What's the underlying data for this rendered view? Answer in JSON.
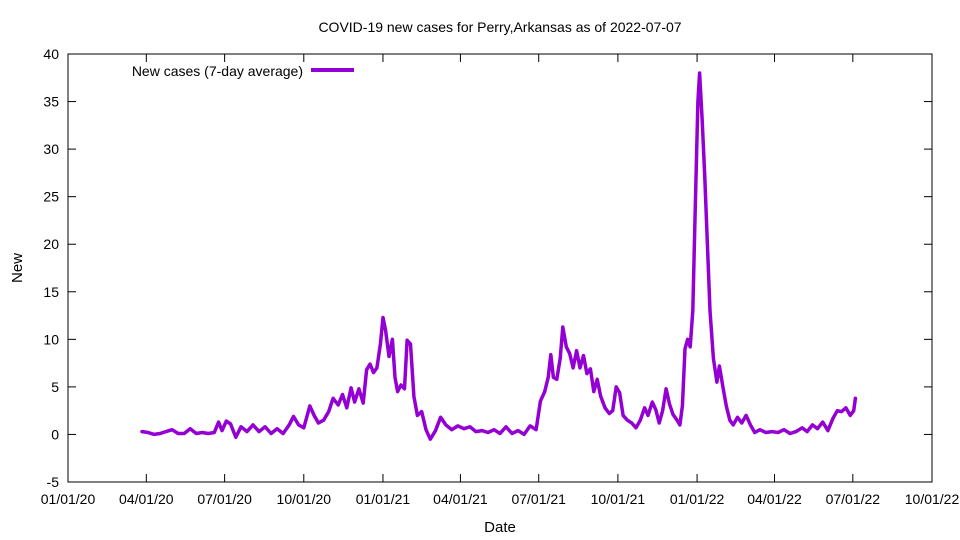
{
  "chart_data": {
    "type": "line",
    "title": "COVID-19 new cases for Perry,Arkansas as of 2022-07-07",
    "xlabel": "Date",
    "ylabel": "New",
    "ylim": [
      -5,
      40
    ],
    "yticks": [
      -5,
      0,
      5,
      10,
      15,
      20,
      25,
      30,
      35,
      40
    ],
    "xlim": [
      "2020-01-01",
      "2022-10-01"
    ],
    "xticks": [
      {
        "date": "2020-01-01",
        "label": "01/01/20"
      },
      {
        "date": "2020-04-01",
        "label": "04/01/20"
      },
      {
        "date": "2020-07-01",
        "label": "07/01/20"
      },
      {
        "date": "2020-10-01",
        "label": "10/01/20"
      },
      {
        "date": "2021-01-01",
        "label": "01/01/21"
      },
      {
        "date": "2021-04-01",
        "label": "04/01/21"
      },
      {
        "date": "2021-07-01",
        "label": "07/01/21"
      },
      {
        "date": "2021-10-01",
        "label": "10/01/21"
      },
      {
        "date": "2022-01-01",
        "label": "01/01/22"
      },
      {
        "date": "2022-04-01",
        "label": "04/01/22"
      },
      {
        "date": "2022-07-01",
        "label": "07/01/22"
      },
      {
        "date": "2022-10-01",
        "label": "10/01/22"
      }
    ],
    "grid": false,
    "legend_position": "top-left",
    "series": [
      {
        "name": "New cases (7-day average)",
        "color": "#9400d3",
        "points": [
          [
            "2020-03-27",
            0.3
          ],
          [
            "2020-04-03",
            0.2
          ],
          [
            "2020-04-10",
            0.0
          ],
          [
            "2020-04-17",
            0.1
          ],
          [
            "2020-04-24",
            0.3
          ],
          [
            "2020-05-01",
            0.5
          ],
          [
            "2020-05-08",
            0.1
          ],
          [
            "2020-05-15",
            0.1
          ],
          [
            "2020-05-22",
            0.6
          ],
          [
            "2020-05-29",
            0.1
          ],
          [
            "2020-06-05",
            0.2
          ],
          [
            "2020-06-12",
            0.1
          ],
          [
            "2020-06-19",
            0.2
          ],
          [
            "2020-06-24",
            1.3
          ],
          [
            "2020-06-28",
            0.4
          ],
          [
            "2020-07-03",
            1.4
          ],
          [
            "2020-07-08",
            1.1
          ],
          [
            "2020-07-14",
            -0.3
          ],
          [
            "2020-07-20",
            0.8
          ],
          [
            "2020-07-27",
            0.3
          ],
          [
            "2020-08-03",
            1.0
          ],
          [
            "2020-08-10",
            0.3
          ],
          [
            "2020-08-17",
            0.8
          ],
          [
            "2020-08-24",
            0.1
          ],
          [
            "2020-08-31",
            0.6
          ],
          [
            "2020-09-07",
            0.1
          ],
          [
            "2020-09-14",
            1.0
          ],
          [
            "2020-09-19",
            1.9
          ],
          [
            "2020-09-25",
            1.0
          ],
          [
            "2020-10-01",
            0.7
          ],
          [
            "2020-10-08",
            3.0
          ],
          [
            "2020-10-13",
            2.0
          ],
          [
            "2020-10-18",
            1.2
          ],
          [
            "2020-10-24",
            1.5
          ],
          [
            "2020-10-30",
            2.4
          ],
          [
            "2020-11-04",
            3.8
          ],
          [
            "2020-11-10",
            3.1
          ],
          [
            "2020-11-15",
            4.2
          ],
          [
            "2020-11-20",
            2.8
          ],
          [
            "2020-11-25",
            4.9
          ],
          [
            "2020-11-29",
            3.4
          ],
          [
            "2020-12-04",
            4.8
          ],
          [
            "2020-12-09",
            3.3
          ],
          [
            "2020-12-13",
            6.8
          ],
          [
            "2020-12-17",
            7.4
          ],
          [
            "2020-12-21",
            6.5
          ],
          [
            "2020-12-25",
            7.0
          ],
          [
            "2020-12-29",
            9.5
          ],
          [
            "2021-01-01",
            12.3
          ],
          [
            "2021-01-04",
            11.0
          ],
          [
            "2021-01-08",
            8.2
          ],
          [
            "2021-01-12",
            10.0
          ],
          [
            "2021-01-15",
            6.0
          ],
          [
            "2021-01-18",
            4.5
          ],
          [
            "2021-01-22",
            5.2
          ],
          [
            "2021-01-26",
            4.8
          ],
          [
            "2021-01-29",
            9.9
          ],
          [
            "2021-02-02",
            9.5
          ],
          [
            "2021-02-06",
            4.0
          ],
          [
            "2021-02-10",
            2.0
          ],
          [
            "2021-02-15",
            2.4
          ],
          [
            "2021-02-20",
            0.5
          ],
          [
            "2021-02-25",
            -0.5
          ],
          [
            "2021-03-03",
            0.4
          ],
          [
            "2021-03-09",
            1.8
          ],
          [
            "2021-03-15",
            1.0
          ],
          [
            "2021-03-22",
            0.5
          ],
          [
            "2021-03-29",
            0.9
          ],
          [
            "2021-04-05",
            0.6
          ],
          [
            "2021-04-12",
            0.8
          ],
          [
            "2021-04-19",
            0.3
          ],
          [
            "2021-04-26",
            0.4
          ],
          [
            "2021-05-03",
            0.2
          ],
          [
            "2021-05-10",
            0.5
          ],
          [
            "2021-05-17",
            0.1
          ],
          [
            "2021-05-24",
            0.8
          ],
          [
            "2021-05-31",
            0.1
          ],
          [
            "2021-06-07",
            0.4
          ],
          [
            "2021-06-14",
            0.0
          ],
          [
            "2021-06-21",
            0.9
          ],
          [
            "2021-06-28",
            0.5
          ],
          [
            "2021-07-03",
            3.5
          ],
          [
            "2021-07-08",
            4.5
          ],
          [
            "2021-07-12",
            6.0
          ],
          [
            "2021-07-15",
            8.4
          ],
          [
            "2021-07-18",
            6.0
          ],
          [
            "2021-07-22",
            5.8
          ],
          [
            "2021-07-26",
            8.0
          ],
          [
            "2021-07-29",
            11.3
          ],
          [
            "2021-08-02",
            9.2
          ],
          [
            "2021-08-06",
            8.5
          ],
          [
            "2021-08-10",
            7.0
          ],
          [
            "2021-08-14",
            8.8
          ],
          [
            "2021-08-18",
            7.0
          ],
          [
            "2021-08-22",
            8.3
          ],
          [
            "2021-08-26",
            6.4
          ],
          [
            "2021-08-30",
            6.9
          ],
          [
            "2021-09-03",
            4.5
          ],
          [
            "2021-09-07",
            5.8
          ],
          [
            "2021-09-11",
            4.0
          ],
          [
            "2021-09-16",
            2.8
          ],
          [
            "2021-09-21",
            2.2
          ],
          [
            "2021-09-25",
            2.5
          ],
          [
            "2021-09-29",
            5.0
          ],
          [
            "2021-10-03",
            4.4
          ],
          [
            "2021-10-07",
            2.0
          ],
          [
            "2021-10-12",
            1.5
          ],
          [
            "2021-10-17",
            1.2
          ],
          [
            "2021-10-22",
            0.7
          ],
          [
            "2021-10-27",
            1.5
          ],
          [
            "2021-11-01",
            2.8
          ],
          [
            "2021-11-05",
            2.0
          ],
          [
            "2021-11-10",
            3.4
          ],
          [
            "2021-11-14",
            2.6
          ],
          [
            "2021-11-18",
            1.2
          ],
          [
            "2021-11-22",
            2.5
          ],
          [
            "2021-11-26",
            4.8
          ],
          [
            "2021-11-30",
            3.2
          ],
          [
            "2021-12-04",
            2.1
          ],
          [
            "2021-12-08",
            1.6
          ],
          [
            "2021-12-12",
            1.0
          ],
          [
            "2021-12-15",
            3.0
          ],
          [
            "2021-12-18",
            9.0
          ],
          [
            "2021-12-21",
            10.0
          ],
          [
            "2021-12-24",
            9.2
          ],
          [
            "2021-12-27",
            13.0
          ],
          [
            "2021-12-30",
            24.0
          ],
          [
            "2022-01-02",
            35.0
          ],
          [
            "2022-01-04",
            38.0
          ],
          [
            "2022-01-07",
            33.0
          ],
          [
            "2022-01-10",
            27.0
          ],
          [
            "2022-01-13",
            20.0
          ],
          [
            "2022-01-16",
            13.0
          ],
          [
            "2022-01-20",
            8.0
          ],
          [
            "2022-01-24",
            5.5
          ],
          [
            "2022-01-27",
            7.2
          ],
          [
            "2022-01-31",
            5.0
          ],
          [
            "2022-02-04",
            3.0
          ],
          [
            "2022-02-08",
            1.5
          ],
          [
            "2022-02-12",
            1.0
          ],
          [
            "2022-02-17",
            1.8
          ],
          [
            "2022-02-22",
            1.2
          ],
          [
            "2022-02-27",
            2.0
          ],
          [
            "2022-03-04",
            1.0
          ],
          [
            "2022-03-09",
            0.2
          ],
          [
            "2022-03-15",
            0.5
          ],
          [
            "2022-03-22",
            0.2
          ],
          [
            "2022-03-29",
            0.3
          ],
          [
            "2022-04-05",
            0.2
          ],
          [
            "2022-04-12",
            0.5
          ],
          [
            "2022-04-19",
            0.1
          ],
          [
            "2022-04-26",
            0.3
          ],
          [
            "2022-05-03",
            0.7
          ],
          [
            "2022-05-09",
            0.3
          ],
          [
            "2022-05-15",
            1.0
          ],
          [
            "2022-05-21",
            0.6
          ],
          [
            "2022-05-27",
            1.3
          ],
          [
            "2022-06-02",
            0.4
          ],
          [
            "2022-06-08",
            1.7
          ],
          [
            "2022-06-13",
            2.5
          ],
          [
            "2022-06-18",
            2.4
          ],
          [
            "2022-06-23",
            2.8
          ],
          [
            "2022-06-28",
            2.0
          ],
          [
            "2022-07-02",
            2.5
          ],
          [
            "2022-07-04",
            3.8
          ]
        ]
      }
    ]
  }
}
